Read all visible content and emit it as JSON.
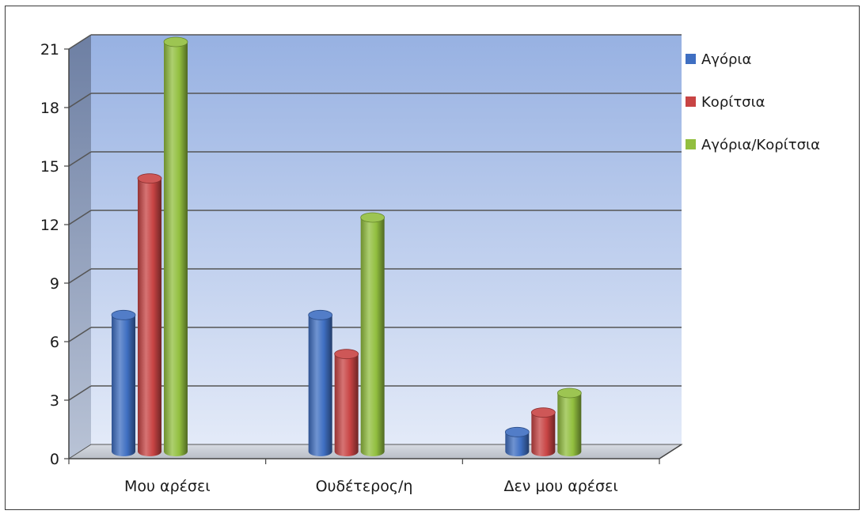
{
  "chart_data": {
    "type": "bar",
    "style": "3d-cylinder",
    "categories": [
      "Μου αρέσει",
      "Ουδέτερος/η",
      "Δεν μου αρέσει"
    ],
    "series": [
      {
        "name": "Αγόρια",
        "values": [
          7,
          7,
          1
        ],
        "color": "#3f6fc2"
      },
      {
        "name": "Κορίτσια",
        "values": [
          14,
          5,
          2
        ],
        "color": "#c84444"
      },
      {
        "name": "Αγόρια/Κορίτσια",
        "values": [
          21,
          12,
          3
        ],
        "color": "#92bf3f"
      }
    ],
    "ylim": [
      0,
      21
    ],
    "yticks": [
      0,
      3,
      6,
      9,
      12,
      15,
      18,
      21
    ],
    "grid": true,
    "legend_position": "top-right",
    "title": "",
    "xlabel": "",
    "ylabel": ""
  }
}
